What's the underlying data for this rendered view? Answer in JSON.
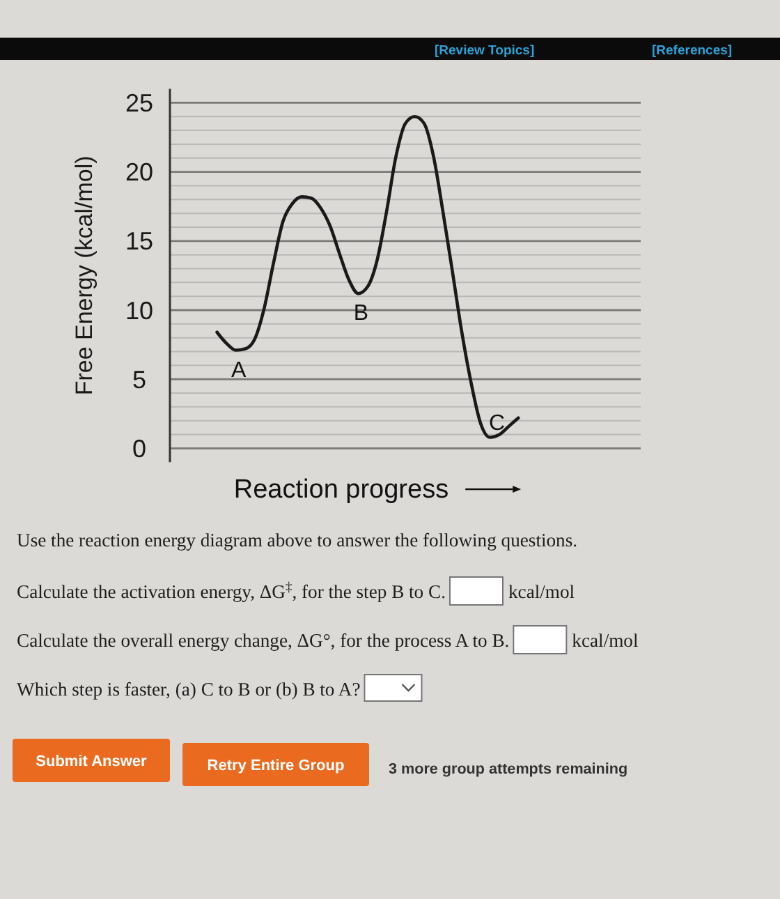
{
  "chart_data": {
    "type": "line",
    "categories": [
      null,
      null,
      null,
      null,
      null,
      null,
      null,
      null,
      null,
      null,
      null,
      null,
      null,
      null,
      null,
      null,
      null,
      null,
      null,
      null,
      null,
      null,
      null,
      null,
      null,
      null,
      null,
      null,
      null,
      null,
      null,
      null,
      null,
      null,
      null,
      null,
      null,
      null,
      null,
      null,
      null,
      null,
      null,
      null,
      null,
      null,
      null,
      null,
      null,
      null,
      null
    ],
    "values": [
      null,
      null,
      null,
      null,
      null,
      8.4,
      7.6,
      7.1,
      7.2,
      7.9,
      10.1,
      13.4,
      16.4,
      17.7,
      18.2,
      18.1,
      17.4,
      16.1,
      14.1,
      12.2,
      11.2,
      11.7,
      13.6,
      17.1,
      21.1,
      23.5,
      24.0,
      23.5,
      21.1,
      17.1,
      12.8,
      8.4,
      4.7,
      1.8,
      0.8,
      1.0,
      1.6,
      2.2,
      null,
      null,
      null,
      null,
      null,
      null,
      null,
      null,
      null,
      null,
      null,
      null,
      null
    ],
    "value_labels": [
      null,
      null,
      null,
      null,
      null,
      null,
      null,
      "A",
      null,
      null,
      null,
      null,
      null,
      null,
      null,
      null,
      null,
      null,
      null,
      null,
      "B",
      null,
      null,
      null,
      null,
      null,
      null,
      null,
      null,
      null,
      null,
      null,
      null,
      null,
      "C",
      null,
      null,
      null,
      null,
      null,
      null,
      null,
      null,
      null,
      null,
      null,
      null,
      null,
      null,
      null,
      null
    ],
    "color": "#1a1a1a",
    "xlabel": "Reaction progress",
    "ylabel": "Free Energy (kcal/mol)",
    "ylim": [
      -1,
      26
    ],
    "yticks": [
      0,
      {
        "value": 1,
        "label": null
      },
      {
        "value": 2,
        "label": null
      },
      {
        "value": 3,
        "label": null
      },
      {
        "value": 4,
        "label": null
      },
      5,
      {
        "value": 6,
        "label": null
      },
      {
        "value": 7,
        "label": null
      },
      {
        "value": 8,
        "label": null
      },
      {
        "value": 9,
        "label": null
      },
      10,
      {
        "value": 11,
        "label": null
      },
      {
        "value": 12,
        "label": null
      },
      {
        "value": 13,
        "label": null
      },
      {
        "value": 14,
        "label": null
      },
      15,
      {
        "value": 16,
        "label": null
      },
      {
        "value": 17,
        "label": null
      },
      {
        "value": 18,
        "label": null
      },
      {
        "value": 19,
        "label": null
      },
      20,
      {
        "value": 21,
        "label": null
      },
      {
        "value": 22,
        "label": null
      },
      {
        "value": 23,
        "label": null
      },
      {
        "value": 24,
        "label": null
      },
      25
    ],
    "grid": "y",
    "tick_labels": "y",
    "annotations": [
      "[Review Topics]",
      "[References]",
      "Use the reaction energy diagram above to answer the following questions.",
      "Calculate the activation energy, ΔG$^{‡}$, for the step B to C.",
      "kcal/mol",
      "Calculate the overall energy change, ΔG°, for the process A to B.",
      "kcal/mol",
      "Which step is faster, (a) C to B or (b) B to A?",
      "Submit Answer",
      "Retry Entire Group",
      "3 more group attempts remaining"
    ]
  }
}
